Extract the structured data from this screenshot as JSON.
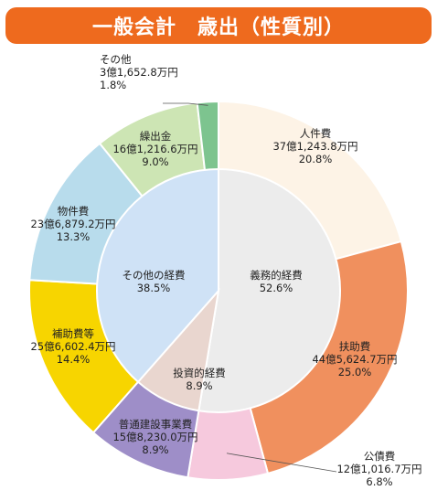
{
  "header": {
    "title": "一般会計　歳出（性質別）",
    "bg_color": "#ee6a1e"
  },
  "chart_data": {
    "type": "pie",
    "style": "nested donut",
    "title": "一般会計　歳出（性質別）",
    "inner": [
      {
        "name": "義務的経費",
        "percent": "52.6%",
        "value": 52.6,
        "color": "#ececec"
      },
      {
        "name": "投資的経費",
        "percent": "8.9%",
        "value": 8.9,
        "color": "#e9d6cf"
      },
      {
        "name": "その他の経費",
        "percent": "38.5%",
        "value": 38.5,
        "color": "#cfe2f6"
      }
    ],
    "outer": [
      {
        "name": "人件費",
        "amount": "37億1,243.8万円",
        "percent": "20.8%",
        "value": 20.8,
        "color": "#fdf3e6"
      },
      {
        "name": "扶助費",
        "amount": "44億5,624.7万円",
        "percent": "25.0%",
        "value": 25.0,
        "color": "#f0905e"
      },
      {
        "name": "公債費",
        "amount": "12億1,016.7万円",
        "percent": "6.8%",
        "value": 6.8,
        "color": "#f6c9dd"
      },
      {
        "name": "普通建設事業費",
        "amount": "15億8,230.0万円",
        "percent": "8.9%",
        "value": 8.9,
        "color": "#9e8ec8"
      },
      {
        "name": "補助費等",
        "amount": "25億6,602.4万円",
        "percent": "14.4%",
        "value": 14.4,
        "color": "#f7d500"
      },
      {
        "name": "物件費",
        "amount": "23億6,879.2万円",
        "percent": "13.3%",
        "value": 13.3,
        "color": "#b8dcec"
      },
      {
        "name": "繰出金",
        "amount": "16億1,216.6万円",
        "percent": "9.0%",
        "value": 9.0,
        "color": "#cde5b4"
      },
      {
        "name": "その他",
        "amount": "3億1,652.8万円",
        "percent": "1.8%",
        "value": 1.8,
        "color": "#7dc48f"
      }
    ]
  }
}
